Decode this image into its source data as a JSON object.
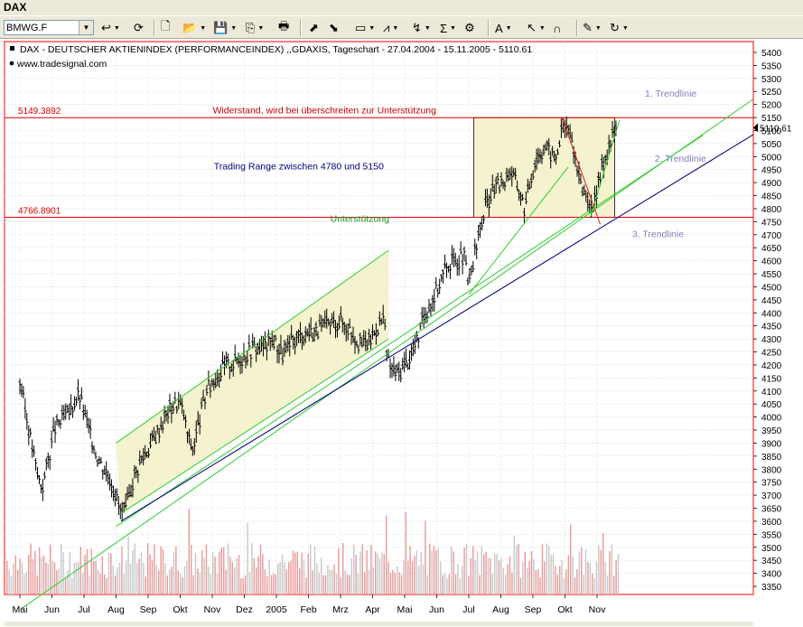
{
  "window": {
    "title": "DAX"
  },
  "toolbar": {
    "symbol_value": "BMWG.F",
    "buttons": [
      {
        "name": "undo-icon",
        "glyph": "↩",
        "dropdown": true
      },
      {
        "name": "refresh-icon",
        "glyph": "⟳",
        "dropdown": false
      },
      {
        "name": "new-document-icon",
        "glyph": "🗋",
        "dropdown": false
      },
      {
        "name": "open-folder-icon",
        "glyph": "📂",
        "dropdown": true
      },
      {
        "name": "save-icon",
        "glyph": "💾",
        "dropdown": true
      },
      {
        "name": "copy-icon",
        "glyph": "⎘",
        "dropdown": true
      },
      {
        "name": "print-icon",
        "glyph": "🖶",
        "dropdown": false
      },
      {
        "name": "chart-in-icon",
        "glyph": "⬈",
        "dropdown": false
      },
      {
        "name": "chart-out-icon",
        "glyph": "⬊",
        "dropdown": false
      },
      {
        "name": "chart-window-icon",
        "glyph": "▭",
        "dropdown": true
      },
      {
        "name": "indicator-icon",
        "glyph": "⩘",
        "dropdown": true
      },
      {
        "name": "drawing-icon",
        "glyph": "↯",
        "dropdown": true
      },
      {
        "name": "sigma-icon",
        "glyph": "Σ",
        "dropdown": true
      },
      {
        "name": "properties-icon",
        "glyph": "⚙",
        "dropdown": false
      },
      {
        "name": "text-icon",
        "glyph": "A",
        "dropdown": true
      },
      {
        "name": "cursor-icon",
        "glyph": "↖",
        "dropdown": true
      },
      {
        "name": "magnet-icon",
        "glyph": "∩",
        "dropdown": false
      },
      {
        "name": "notes-icon",
        "glyph": "✎",
        "dropdown": true
      },
      {
        "name": "reload-icon",
        "glyph": "↻",
        "dropdown": true
      }
    ]
  },
  "chart_data": {
    "type": "candlestick",
    "title": "DAX  - DEUTSCHER AKTIENINDEX (PERFORMANCEINDEX) ,,GDAXIS, Tageschart - 27.04.2004 - 15.11.2005 - 5110.61",
    "source": "www.tradesignal.com",
    "last_price_label": "5110.61",
    "last_price": 5110.61,
    "y_axis": {
      "min": 3300,
      "max": 5450,
      "tick_step": 50
    },
    "x_axis": {
      "month_labels": [
        "Mai",
        "Jun",
        "Jul",
        "Aug",
        "Sep",
        "Okt",
        "Nov",
        "Dez",
        "2005",
        "Feb",
        "Mrz",
        "Apr",
        "Mai",
        "Jun",
        "Jul",
        "Aug",
        "Sep",
        "Okt",
        "Nov"
      ],
      "month_index": [
        0,
        1,
        2,
        3,
        4,
        5,
        6,
        7,
        8,
        9,
        10,
        11,
        12,
        13,
        14,
        15,
        16,
        17,
        18
      ]
    },
    "price_path": [
      {
        "m": 0.0,
        "v": 4140
      },
      {
        "m": 0.3,
        "v": 3940
      },
      {
        "m": 0.55,
        "v": 3780
      },
      {
        "m": 0.7,
        "v": 3730
      },
      {
        "m": 0.9,
        "v": 3850
      },
      {
        "m": 1.1,
        "v": 3960
      },
      {
        "m": 1.3,
        "v": 3990
      },
      {
        "m": 1.5,
        "v": 4010
      },
      {
        "m": 1.7,
        "v": 4060
      },
      {
        "m": 1.85,
        "v": 4090
      },
      {
        "m": 2.0,
        "v": 4020
      },
      {
        "m": 2.2,
        "v": 3930
      },
      {
        "m": 2.45,
        "v": 3840
      },
      {
        "m": 2.7,
        "v": 3790
      },
      {
        "m": 2.85,
        "v": 3760
      },
      {
        "m": 3.0,
        "v": 3700
      },
      {
        "m": 3.15,
        "v": 3630
      },
      {
        "m": 3.3,
        "v": 3640
      },
      {
        "m": 3.55,
        "v": 3770
      },
      {
        "m": 3.8,
        "v": 3840
      },
      {
        "m": 4.1,
        "v": 3900
      },
      {
        "m": 4.4,
        "v": 3970
      },
      {
        "m": 4.7,
        "v": 4040
      },
      {
        "m": 4.95,
        "v": 4060
      },
      {
        "m": 5.1,
        "v": 4020
      },
      {
        "m": 5.25,
        "v": 3920
      },
      {
        "m": 5.4,
        "v": 3880
      },
      {
        "m": 5.6,
        "v": 3990
      },
      {
        "m": 5.85,
        "v": 4110
      },
      {
        "m": 6.1,
        "v": 4150
      },
      {
        "m": 6.4,
        "v": 4200
      },
      {
        "m": 6.7,
        "v": 4210
      },
      {
        "m": 7.0,
        "v": 4240
      },
      {
        "m": 7.3,
        "v": 4270
      },
      {
        "m": 7.6,
        "v": 4270
      },
      {
        "m": 7.9,
        "v": 4300
      },
      {
        "m": 8.2,
        "v": 4240
      },
      {
        "m": 8.5,
        "v": 4290
      },
      {
        "m": 8.8,
        "v": 4320
      },
      {
        "m": 9.1,
        "v": 4330
      },
      {
        "m": 9.4,
        "v": 4340
      },
      {
        "m": 9.7,
        "v": 4360
      },
      {
        "m": 10.0,
        "v": 4370
      },
      {
        "m": 10.3,
        "v": 4340
      },
      {
        "m": 10.6,
        "v": 4280
      },
      {
        "m": 10.9,
        "v": 4290
      },
      {
        "m": 11.2,
        "v": 4360
      },
      {
        "m": 11.35,
        "v": 4380
      },
      {
        "m": 11.45,
        "v": 4230
      },
      {
        "m": 11.6,
        "v": 4180
      },
      {
        "m": 11.8,
        "v": 4170
      },
      {
        "m": 12.0,
        "v": 4200
      },
      {
        "m": 12.2,
        "v": 4240
      },
      {
        "m": 12.4,
        "v": 4300
      },
      {
        "m": 12.6,
        "v": 4390
      },
      {
        "m": 12.85,
        "v": 4450
      },
      {
        "m": 13.1,
        "v": 4520
      },
      {
        "m": 13.35,
        "v": 4590
      },
      {
        "m": 13.6,
        "v": 4600
      },
      {
        "m": 13.85,
        "v": 4620
      },
      {
        "m": 14.0,
        "v": 4500
      },
      {
        "m": 14.15,
        "v": 4600
      },
      {
        "m": 14.35,
        "v": 4720
      },
      {
        "m": 14.55,
        "v": 4820
      },
      {
        "m": 14.8,
        "v": 4880
      },
      {
        "m": 15.05,
        "v": 4900
      },
      {
        "m": 15.3,
        "v": 4950
      },
      {
        "m": 15.55,
        "v": 4880
      },
      {
        "m": 15.75,
        "v": 4800
      },
      {
        "m": 15.9,
        "v": 4900
      },
      {
        "m": 16.1,
        "v": 5000
      },
      {
        "m": 16.4,
        "v": 5040
      },
      {
        "m": 16.7,
        "v": 4990
      },
      {
        "m": 16.9,
        "v": 5100
      },
      {
        "m": 17.05,
        "v": 5120
      },
      {
        "m": 17.25,
        "v": 5050
      },
      {
        "m": 17.45,
        "v": 4900
      },
      {
        "m": 17.6,
        "v": 4870
      },
      {
        "m": 17.75,
        "v": 4830
      },
      {
        "m": 17.85,
        "v": 4770
      },
      {
        "m": 18.0,
        "v": 4870
      },
      {
        "m": 18.15,
        "v": 4960
      },
      {
        "m": 18.3,
        "v": 5020
      },
      {
        "m": 18.45,
        "v": 5070
      },
      {
        "m": 18.6,
        "v": 5110
      }
    ],
    "horizontal_lines": [
      {
        "label": "5149.3892",
        "value": 5149.3892
      },
      {
        "label": "4766.8901",
        "value": 4766.8901
      }
    ],
    "annotations": [
      {
        "text": "Widerstand, wird bei überschreiten zur Unterstützung",
        "m": 9.5,
        "v": 5165
      },
      {
        "text": "Trading Range zwischen 4780 und 5150",
        "m": 8.7,
        "v": 4950
      },
      {
        "text": "Unterstützung",
        "m": 10.6,
        "v": 4750
      },
      {
        "text": "1. Trendlinie",
        "m": 20.3,
        "v": 5230
      },
      {
        "text": "2. Trendlinie",
        "m": 20.6,
        "v": 4980
      },
      {
        "text": "3. Trendlinie",
        "m": 19.9,
        "v": 4690
      }
    ],
    "trendlines": [
      {
        "name": "1. Trendlinie",
        "color": "#33cc33",
        "from": {
          "m": 3.0,
          "v": 3580
        },
        "to": {
          "m": 17.5,
          "v": 4770
        },
        "extend_to": 21.3
      },
      {
        "name": "2. Trendlinie",
        "color": "#33cc33",
        "from": {
          "m": 0.0,
          "v": 3260
        },
        "to": {
          "m": 17.5,
          "v": 4760
        },
        "extend_to": 23.2
      },
      {
        "name": "3. Trendlinie",
        "color": "#000080",
        "from": {
          "m": 3.15,
          "v": 3600
        },
        "to": {
          "m": 17.5,
          "v": 4680
        },
        "extend_to": 23.2
      },
      {
        "name": "channel-upper",
        "color": "#33cc33",
        "from": {
          "m": 3.0,
          "v": 3900
        },
        "to": {
          "m": 11.5,
          "v": 4640
        }
      },
      {
        "name": "channel-lower",
        "color": "#33cc33",
        "from": {
          "m": 3.15,
          "v": 3630
        },
        "to": {
          "m": 11.5,
          "v": 4300
        }
      },
      {
        "name": "steep-support",
        "color": "#33cc33",
        "from": {
          "m": 14.0,
          "v": 4470
        },
        "to": {
          "m": 17.1,
          "v": 4960
        }
      },
      {
        "name": "red-downtrend",
        "color": "#dd2222",
        "from": {
          "m": 16.9,
          "v": 5150
        },
        "to": {
          "m": 18.1,
          "v": 4740
        }
      },
      {
        "name": "green-rebound",
        "color": "#33cc33",
        "from": {
          "m": 17.8,
          "v": 4770
        },
        "to": {
          "m": 18.7,
          "v": 5140
        }
      }
    ],
    "shaded_regions": [
      {
        "name": "channel-shade",
        "color": "#f4f2cf",
        "polygon": [
          {
            "m": 3.0,
            "v": 3900
          },
          {
            "m": 11.5,
            "v": 4640
          },
          {
            "m": 11.5,
            "v": 4300
          },
          {
            "m": 3.15,
            "v": 3630
          }
        ]
      },
      {
        "name": "trading-range",
        "color": "#f4f2cf",
        "box": {
          "m0": 14.15,
          "m1": 18.55,
          "v0": 4766.8901,
          "v1": 5149.3892
        }
      }
    ],
    "volume": {
      "max_relative_height": 1.0,
      "color": "#c8c8c8",
      "highlight_color": "#e89a9a"
    },
    "colors": {
      "background": "#ffffff",
      "grid": "#cccccc",
      "axis_text": "#000000",
      "frame": "#ff0000",
      "hline": "#dd0000",
      "candle": "#000000"
    }
  }
}
